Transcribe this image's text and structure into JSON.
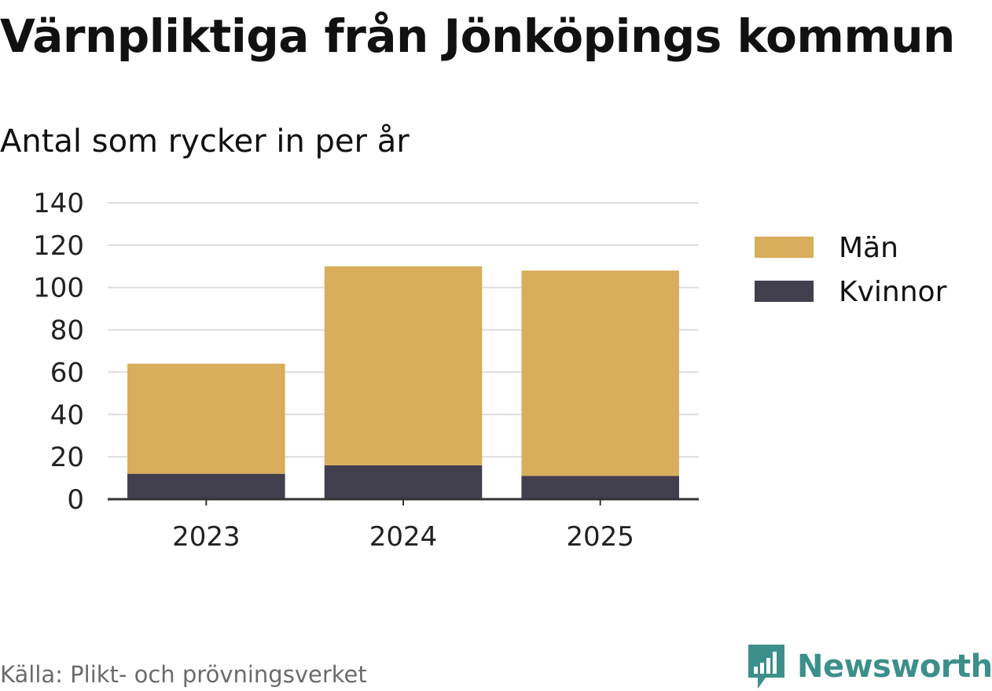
{
  "title": "Värnpliktiga från Jönköpings kommun",
  "subtitle": "Antal som rycker in per år",
  "source": "Källa: Plikt- och prövningsverket",
  "brand": {
    "name": "Newsworthy",
    "icon": "bar-chart-icon",
    "color": "#3c8f8a"
  },
  "chart_data": {
    "type": "bar",
    "stacked": true,
    "categories": [
      "2023",
      "2024",
      "2025"
    ],
    "series": [
      {
        "name": "Kvinnor",
        "values": [
          12,
          16,
          11
        ],
        "color": "#413f4e"
      },
      {
        "name": "Män",
        "values": [
          52,
          94,
          97
        ],
        "color": "#d8ad5c"
      }
    ],
    "legend": [
      "Män",
      "Kvinnor"
    ],
    "legend_position": "right",
    "ylim": [
      0,
      140
    ],
    "yticks": [
      0,
      20,
      40,
      60,
      80,
      100,
      120,
      140
    ],
    "grid": true,
    "xlabel": "",
    "ylabel": ""
  }
}
